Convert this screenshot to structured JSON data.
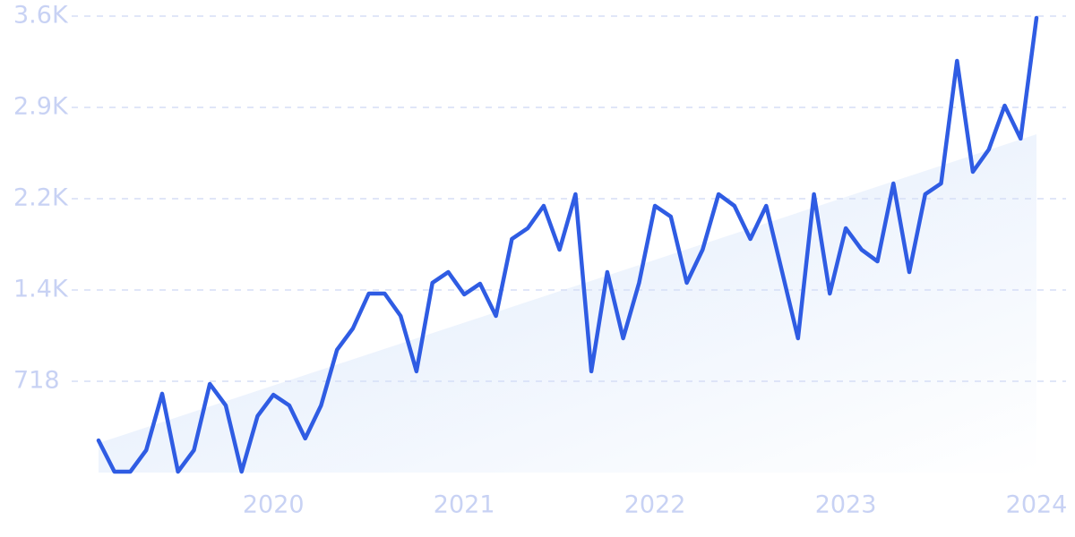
{
  "chart_data": {
    "type": "line",
    "categories": [
      null,
      null,
      null,
      null,
      null,
      null,
      null,
      null,
      null,
      null,
      null,
      "2020",
      null,
      null,
      null,
      null,
      null,
      null,
      null,
      null,
      null,
      null,
      null,
      "2021",
      null,
      null,
      null,
      null,
      null,
      null,
      null,
      null,
      null,
      null,
      null,
      "2022",
      null,
      null,
      null,
      null,
      null,
      null,
      null,
      null,
      null,
      null,
      null,
      "2023",
      null,
      null,
      null,
      null,
      null,
      null,
      null,
      null,
      null,
      null,
      null,
      "2024"
    ],
    "values": [
      253,
      7,
      7,
      176,
      620,
      7,
      176,
      697,
      528,
      7,
      444,
      612,
      528,
      268,
      528,
      965,
      1133,
      1408,
      1408,
      1232,
      796,
      1492,
      1577,
      1401,
      1485,
      1232,
      1837,
      1922,
      2098,
      1753,
      2189,
      796,
      1577,
      1056,
      1492,
      2098,
      2013,
      1492,
      1753,
      2189,
      2098,
      1837,
      2098,
      1577,
      1056,
      2189,
      1408,
      1922,
      1753,
      1661,
      2274,
      1577,
      2189,
      2274,
      3238,
      2365,
      2541,
      2886,
      2626,
      3576
    ],
    "color": "#2f5ce3",
    "trend": [
      232,
      2661
    ],
    "ylim": [
      0,
      3590
    ],
    "yticks": [
      718,
      {
        "value": 1436,
        "label": "1.4K"
      },
      {
        "value": 2154,
        "label": "2.2K"
      },
      {
        "value": 2872,
        "label": "2.9K"
      },
      {
        "value": 3590,
        "label": "3.6K"
      }
    ],
    "grid": true
  }
}
